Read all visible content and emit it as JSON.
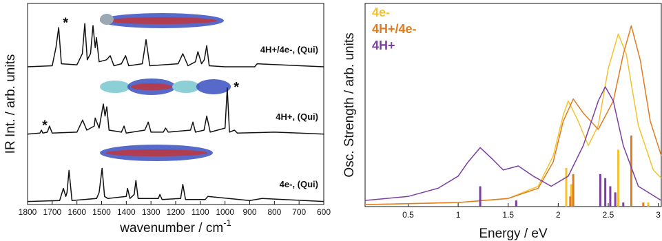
{
  "chart_data": [
    {
      "type": "line",
      "y_label": "IR Int. / arb. units",
      "x_label": "wavenumber / cm",
      "x_label_sup": "-1",
      "xlim": [
        1800,
        600
      ],
      "xticks": [
        1800,
        1700,
        1600,
        1500,
        1400,
        1300,
        1200,
        1100,
        1000,
        900,
        800,
        700,
        600
      ],
      "ylim": [
        0,
        100
      ],
      "series": [
        {
          "name": "4H+/4e-, (Qui)",
          "color": "#111111",
          "x": [
            1800,
            1700,
            1685,
            1674,
            1663,
            1600,
            1578,
            1568,
            1558,
            1545,
            1535,
            1526,
            1521,
            1510,
            1480,
            1465,
            1450,
            1420,
            1403,
            1390,
            1335,
            1320,
            1305,
            1190,
            1171,
            1150,
            1120,
            1110,
            1095,
            1084,
            1074,
            1064,
            1000,
            880,
            870,
            600
          ],
          "values": [
            68.5,
            69,
            78,
            88,
            70,
            69.5,
            75,
            90,
            72,
            75,
            89,
            78,
            83,
            71,
            72,
            74,
            69,
            70,
            74,
            69,
            70,
            82,
            69,
            70,
            75,
            69,
            71,
            76,
            70,
            72,
            79,
            69,
            68.5,
            68.5,
            70,
            68.5
          ]
        },
        {
          "name": "4H+, (Qui)",
          "color": "#111111",
          "x": [
            1800,
            1750,
            1744,
            1738,
            1720,
            1711,
            1700,
            1600,
            1577,
            1560,
            1530,
            1526,
            1510,
            1493,
            1486,
            1479,
            1470,
            1420,
            1409,
            1400,
            1325,
            1311,
            1300,
            1250,
            1241,
            1230,
            1140,
            1130,
            1120,
            1085,
            1074,
            1060,
            1000,
            991,
            982,
            962,
            950,
            800,
            700,
            600
          ],
          "values": [
            35,
            35.5,
            37,
            35.5,
            36,
            39,
            35.5,
            36,
            42,
            37,
            39,
            43,
            38,
            50,
            44,
            48.6,
            37,
            36,
            39,
            35.5,
            37,
            41,
            36,
            36,
            38,
            36,
            37,
            41,
            36,
            37,
            44,
            36,
            38,
            58,
            36,
            37,
            35.5,
            36,
            35.5,
            35
          ]
        },
        {
          "name": "4e-, (Qui)",
          "color": "#111111",
          "x": [
            1800,
            1670,
            1655,
            1645,
            1640,
            1632,
            1620,
            1520,
            1510,
            1498,
            1488,
            1475,
            1400,
            1395,
            1385,
            1368,
            1361,
            1352,
            1270,
            1264,
            1255,
            1180,
            1171,
            1160,
            1080,
            1070,
            900,
            850,
            600
          ],
          "values": [
            1.5,
            2,
            8,
            4,
            6,
            17,
            2,
            3,
            6,
            18,
            4,
            3,
            4,
            8,
            3,
            5,
            12,
            3,
            3,
            5,
            2.5,
            3,
            10,
            2.5,
            2.5,
            4,
            2,
            3,
            1.5
          ]
        }
      ],
      "annotations": [
        {
          "text": "*",
          "x": 1646,
          "y": 90
        },
        {
          "text": "*",
          "x": 1730,
          "y": 39
        },
        {
          "text": "*",
          "x": 954,
          "y": 58
        }
      ]
    },
    {
      "type": "line",
      "y_label": "Osc. Strength / arb. units",
      "x_label": "Energy / eV",
      "xlim": [
        0.07,
        3.03
      ],
      "xticks": [
        0.5,
        1,
        1.5,
        2,
        2.5,
        3
      ],
      "ylim": [
        0,
        100
      ],
      "series": [
        {
          "name": "4e-",
          "color": "#f2c230",
          "x": [
            0.07,
            1.0,
            1.5,
            1.8,
            1.95,
            2.05,
            2.1,
            2.2,
            2.3,
            2.4,
            2.5,
            2.6,
            2.68,
            2.8,
            2.95,
            3.03
          ],
          "values": [
            1,
            2,
            4,
            10,
            25,
            45,
            52,
            42,
            30,
            40,
            68,
            85,
            75,
            40,
            18,
            14
          ],
          "sticks": {
            "x": [
              2.08,
              2.13,
              2.6,
              2.9
            ],
            "values": [
              19,
              11,
              28,
              2
            ]
          }
        },
        {
          "name": "4H+/4e-",
          "color": "#e07b1f",
          "x": [
            0.07,
            1.0,
            1.5,
            1.8,
            1.95,
            2.05,
            2.15,
            2.25,
            2.4,
            2.55,
            2.65,
            2.73,
            2.82,
            2.92,
            3.03
          ],
          "values": [
            1,
            2,
            4,
            9,
            22,
            42,
            53,
            46,
            38,
            52,
            75,
            89,
            72,
            42,
            25
          ],
          "sticks": {
            "x": [
              2.12,
              2.15,
              2.73,
              2.85
            ],
            "values": [
              5,
              16,
              35,
              2
            ]
          }
        },
        {
          "name": "4H+",
          "color": "#7b3fa0",
          "x": [
            0.07,
            0.5,
            0.8,
            1.0,
            1.1,
            1.22,
            1.35,
            1.45,
            1.6,
            1.75,
            1.93,
            2.1,
            2.25,
            2.4,
            2.47,
            2.55,
            2.65,
            2.8,
            3.03
          ],
          "values": [
            3,
            5,
            9,
            15,
            22,
            29,
            23,
            18,
            20,
            15,
            10,
            15,
            30,
            52,
            59,
            52,
            30,
            10,
            3
          ],
          "sticks": {
            "x": [
              1.22,
              1.58,
              2.42,
              2.47,
              2.52,
              2.57,
              2.65
            ],
            "values": [
              10,
              3,
              16,
              14,
              10,
              7,
              2
            ]
          }
        }
      ]
    }
  ]
}
